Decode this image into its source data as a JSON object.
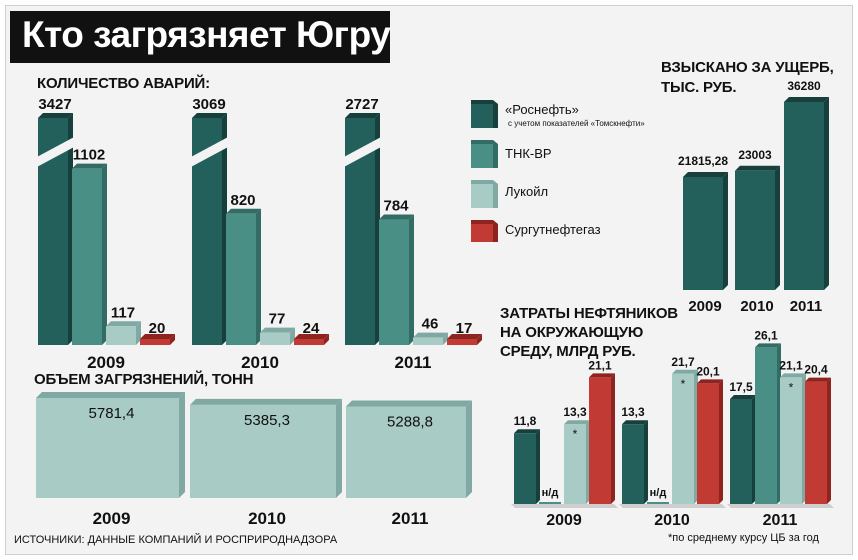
{
  "title": "Кто загрязняет Югру",
  "source": "ИСТОЧНИКИ: ДАННЫЕ КОМПАНИЙ И РОСПРИРОДНАДЗОРА",
  "footnote": "*по среднему курсу ЦБ за год",
  "colors": {
    "rosneft": "#23605c",
    "tnk": "#4a8f85",
    "lukoil": "#a9cbc5",
    "surgut": "#c23a34"
  },
  "legend": [
    {
      "label": "«Роснефть»",
      "sub": "с учетом показателей «Томскнефти»",
      "color": "#23605c"
    },
    {
      "label": "ТНК-ВР",
      "sub": "",
      "color": "#4a8f85"
    },
    {
      "label": "Лукойл",
      "sub": "",
      "color": "#a9cbc5"
    },
    {
      "label": "Сургутнефтегаз",
      "sub": "",
      "color": "#c23a34"
    }
  ],
  "accidents_heading": "КОЛИЧЕСТВО АВАРИЙ:",
  "volume_heading": "ОБЪЕМ ЗАГРЯЗНЕНИЙ, ТОНН",
  "damages_heading_1": "ВЗЫСКАНО ЗА УЩЕРБ,",
  "damages_heading_2": "ТЫС. РУБ.",
  "spend_heading_1": "ЗАТРАТЫ НЕФТЯНИКОВ",
  "spend_heading_2": "НА ОКРУЖАЮЩУЮ",
  "spend_heading_3": "СРЕДУ, МЛРД РУБ.",
  "chart_data": [
    {
      "type": "bar",
      "title": "КОЛИЧЕСТВО АВАРИЙ:",
      "categories": [
        "2009",
        "2010",
        "2011"
      ],
      "axis_break": true,
      "series": [
        {
          "name": "«Роснефть»",
          "values": [
            3427,
            3069,
            2727
          ],
          "labels": [
            "3427",
            "3069",
            "2727"
          ]
        },
        {
          "name": "ТНК-ВР",
          "values": [
            1102,
            820,
            784
          ],
          "labels": [
            "1102",
            "820",
            "784"
          ]
        },
        {
          "name": "Лукойл",
          "values": [
            117,
            77,
            46
          ],
          "labels": [
            "117",
            "77",
            "46"
          ]
        },
        {
          "name": "Сургутнефтегаз",
          "values": [
            20,
            24,
            17
          ],
          "labels": [
            "20",
            "24",
            "17"
          ]
        }
      ]
    },
    {
      "type": "bar",
      "title": "ОБЪЕМ ЗАГРЯЗНЕНИЙ, ТОНН",
      "categories": [
        "2009",
        "2010",
        "2011"
      ],
      "values": [
        5781.4,
        5385.3,
        5288.8
      ],
      "labels": [
        "5781,4",
        "5385,3",
        "5288,8"
      ]
    },
    {
      "type": "bar",
      "title": "ВЗЫСКАНО ЗА УЩЕРБ, ТЫС. РУБ.",
      "categories": [
        "2009",
        "2010",
        "2011"
      ],
      "values": [
        21815.28,
        23003,
        36280
      ],
      "labels": [
        "21815,28",
        "23003",
        "36280"
      ]
    },
    {
      "type": "bar",
      "title": "ЗАТРАТЫ НЕФТЯНИКОВ НА ОКРУЖАЮЩУЮ СРЕДУ, МЛРД РУБ.",
      "categories": [
        "2009",
        "2010",
        "2011"
      ],
      "series": [
        {
          "name": "«Роснефть»",
          "values": [
            11.8,
            13.3,
            17.5
          ],
          "labels": [
            "11,8",
            "13,3",
            "17,5"
          ]
        },
        {
          "name": "ТНК-ВР",
          "values": [
            null,
            null,
            26.1
          ],
          "labels": [
            "н/д",
            "н/д",
            "26,1"
          ]
        },
        {
          "name": "Лукойл",
          "values": [
            13.3,
            21.7,
            21.1
          ],
          "labels": [
            "13,3",
            "21,7",
            "21,1"
          ],
          "marks": [
            "*",
            "*",
            "*"
          ]
        },
        {
          "name": "Сургутнефтегаз",
          "values": [
            21.1,
            20.1,
            20.4
          ],
          "labels": [
            "21,1",
            "20,1",
            "20,4"
          ]
        }
      ]
    }
  ]
}
